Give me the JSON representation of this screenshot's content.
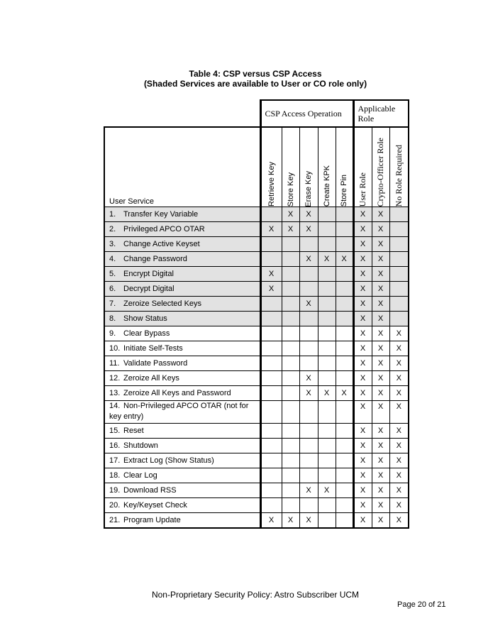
{
  "title": {
    "line1": "Table 4: CSP versus CSP Access",
    "line2": "(Shaded Services are available to User or CO role only)"
  },
  "groups": {
    "ops": "CSP Access Operation",
    "roles": "Applicable Role"
  },
  "service_header": "User Service",
  "columns": [
    "Retrieve Key",
    "Store Key",
    "Erase Key",
    "Create KPK",
    "Store Pin",
    "User Role",
    "Crypto-Officer Role",
    "No Role Required"
  ],
  "rows": [
    {
      "n": "1.",
      "name": "Transfer Key Variable",
      "marks": [
        "",
        "X",
        "X",
        "",
        "",
        "X",
        "X",
        ""
      ],
      "shaded": true
    },
    {
      "n": "2.",
      "name": "Privileged APCO OTAR",
      "marks": [
        "X",
        "X",
        "X",
        "",
        "",
        "X",
        "X",
        ""
      ],
      "shaded": true
    },
    {
      "n": "3.",
      "name": "Change Active Keyset",
      "marks": [
        "",
        "",
        "",
        "",
        "",
        "X",
        "X",
        ""
      ],
      "shaded": true
    },
    {
      "n": "4.",
      "name": "Change Password",
      "marks": [
        "",
        "",
        "X",
        "X",
        "X",
        "X",
        "X",
        ""
      ],
      "shaded": true
    },
    {
      "n": "5.",
      "name": "Encrypt Digital",
      "marks": [
        "X",
        "",
        "",
        "",
        "",
        "X",
        "X",
        ""
      ],
      "shaded": true
    },
    {
      "n": "6.",
      "name": "Decrypt Digital",
      "marks": [
        "X",
        "",
        "",
        "",
        "",
        "X",
        "X",
        ""
      ],
      "shaded": true
    },
    {
      "n": "7.",
      "name": "Zeroize Selected Keys",
      "marks": [
        "",
        "",
        "X",
        "",
        "",
        "X",
        "X",
        ""
      ],
      "shaded": true
    },
    {
      "n": "8.",
      "name": "Show Status",
      "marks": [
        "",
        "",
        "",
        "",
        "",
        "X",
        "X",
        ""
      ],
      "shaded": true
    },
    {
      "n": "9.",
      "name": "Clear Bypass",
      "marks": [
        "",
        "",
        "",
        "",
        "",
        "X",
        "X",
        "X"
      ],
      "shaded": false
    },
    {
      "n": "10.",
      "name": "Initiate Self-Tests",
      "marks": [
        "",
        "",
        "",
        "",
        "",
        "X",
        "X",
        "X"
      ],
      "shaded": false
    },
    {
      "n": "11.",
      "name": "Validate Password",
      "marks": [
        "",
        "",
        "",
        "",
        "",
        "X",
        "X",
        "X"
      ],
      "shaded": false
    },
    {
      "n": "12.",
      "name": "Zeroize All Keys",
      "marks": [
        "",
        "",
        "X",
        "",
        "",
        "X",
        "X",
        "X"
      ],
      "shaded": false
    },
    {
      "n": "13.",
      "name": "Zeroize All Keys and Password",
      "marks": [
        "",
        "",
        "X",
        "X",
        "X",
        "X",
        "X",
        "X"
      ],
      "shaded": false
    },
    {
      "n": "14.",
      "name": "Non-Privileged APCO OTAR (not for key entry)",
      "marks": [
        "",
        "",
        "",
        "",
        "",
        "X",
        "X",
        "X"
      ],
      "shaded": false
    },
    {
      "n": "15.",
      "name": "Reset",
      "marks": [
        "",
        "",
        "",
        "",
        "",
        "X",
        "X",
        "X"
      ],
      "shaded": false
    },
    {
      "n": "16.",
      "name": "Shutdown",
      "marks": [
        "",
        "",
        "",
        "",
        "",
        "X",
        "X",
        "X"
      ],
      "shaded": false
    },
    {
      "n": "17.",
      "name": "Extract Log (Show Status)",
      "marks": [
        "",
        "",
        "",
        "",
        "",
        "X",
        "X",
        "X"
      ],
      "shaded": false
    },
    {
      "n": "18.",
      "name": "Clear Log",
      "marks": [
        "",
        "",
        "",
        "",
        "",
        "X",
        "X",
        "X"
      ],
      "shaded": false
    },
    {
      "n": "19.",
      "name": "Download RSS",
      "marks": [
        "",
        "",
        "X",
        "X",
        "",
        "X",
        "X",
        "X"
      ],
      "shaded": false
    },
    {
      "n": "20.",
      "name": "Key/Keyset Check",
      "marks": [
        "",
        "",
        "",
        "",
        "",
        "X",
        "X",
        "X"
      ],
      "shaded": false
    },
    {
      "n": "21.",
      "name": "Program Update",
      "marks": [
        "X",
        "X",
        "X",
        "",
        "",
        "X",
        "X",
        "X"
      ],
      "shaded": false
    }
  ],
  "footer": "Non-Proprietary Security Policy: Astro Subscriber UCM",
  "page": "Page 20 of 21"
}
